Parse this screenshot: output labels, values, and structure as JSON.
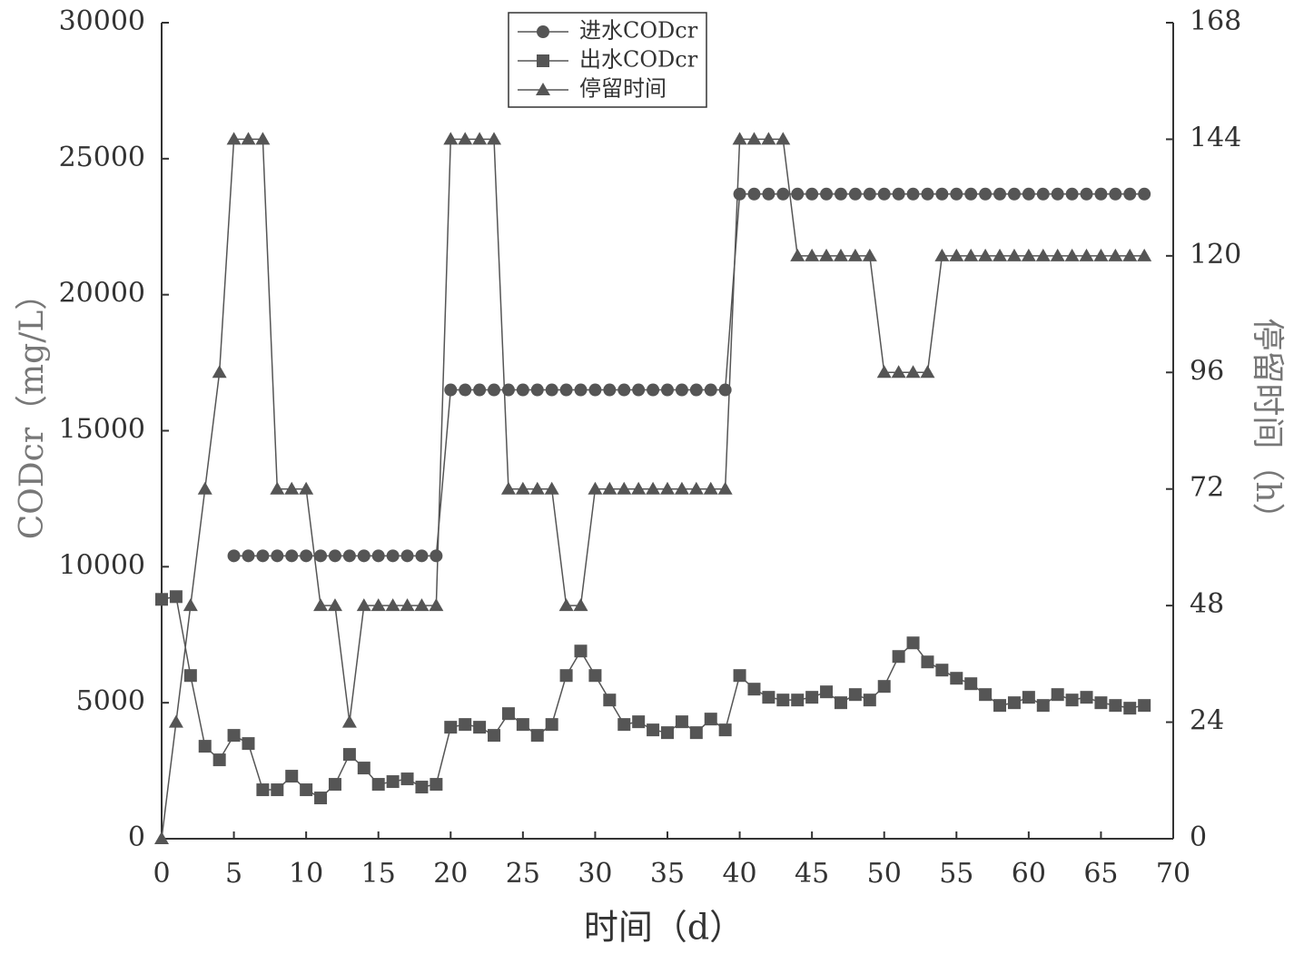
{
  "chart_data": {
    "type": "line",
    "x_label": "时间（d）",
    "y_label": "CODcr（mg/L）",
    "y2_label": "停留时间（h）",
    "xlim": [
      0,
      70
    ],
    "xticks": [
      0,
      5,
      10,
      15,
      20,
      25,
      30,
      35,
      40,
      45,
      50,
      55,
      60,
      65,
      70
    ],
    "ylim": [
      0,
      30000
    ],
    "yticks": [
      0,
      5000,
      10000,
      15000,
      20000,
      25000,
      30000
    ],
    "y2lim": [
      0,
      168
    ],
    "y2ticks": [
      0,
      24,
      48,
      72,
      96,
      120,
      144,
      168
    ],
    "legend": "top-center",
    "series": [
      {
        "name": "进水CODcr",
        "color": "#555555",
        "marker": "circle",
        "x": [
          5,
          6,
          7,
          8,
          9,
          10,
          11,
          12,
          13,
          14,
          15,
          16,
          17,
          18,
          19,
          20,
          21,
          22,
          23,
          24,
          25,
          26,
          27,
          28,
          29,
          30,
          31,
          32,
          33,
          34,
          35,
          36,
          37,
          38,
          39,
          40,
          41,
          42,
          43,
          44,
          45,
          46,
          47,
          48,
          49,
          50,
          51,
          52,
          53,
          54,
          55,
          56,
          57,
          58,
          59,
          60,
          61,
          62,
          63,
          64,
          65,
          66,
          67,
          68
        ],
        "values": [
          10400,
          10400,
          10400,
          10400,
          10400,
          10400,
          10400,
          10400,
          10400,
          10400,
          10400,
          10400,
          10400,
          10400,
          10400,
          16500,
          16500,
          16500,
          16500,
          16500,
          16500,
          16500,
          16500,
          16500,
          16500,
          16500,
          16500,
          16500,
          16500,
          16500,
          16500,
          16500,
          16500,
          16500,
          16500,
          23700,
          23700,
          23700,
          23700,
          23700,
          23700,
          23700,
          23700,
          23700,
          23700,
          23700,
          23700,
          23700,
          23700,
          23700,
          23700,
          23700,
          23700,
          23700,
          23700,
          23700,
          23700,
          23700,
          23700,
          23700,
          23700,
          23700,
          23700,
          23700
        ]
      },
      {
        "name": "出水CODcr",
        "color": "#555555",
        "marker": "square",
        "x": [
          0,
          1,
          2,
          3,
          4,
          5,
          6,
          7,
          8,
          9,
          10,
          11,
          12,
          13,
          14,
          15,
          16,
          17,
          18,
          19,
          20,
          21,
          22,
          23,
          24,
          25,
          26,
          27,
          28,
          29,
          30,
          31,
          32,
          33,
          34,
          35,
          36,
          37,
          38,
          39,
          40,
          41,
          42,
          43,
          44,
          45,
          46,
          47,
          48,
          49,
          50,
          51,
          52,
          53,
          54,
          55,
          56,
          57,
          58,
          59,
          60,
          61,
          62,
          63,
          64,
          65,
          66,
          67,
          68
        ],
        "values": [
          8800,
          8900,
          6000,
          3400,
          2900,
          3800,
          3500,
          1800,
          1800,
          2300,
          1800,
          1500,
          2000,
          3100,
          2600,
          2000,
          2100,
          2200,
          1900,
          2000,
          4100,
          4200,
          4100,
          3800,
          4600,
          4200,
          3800,
          4200,
          6000,
          6900,
          6000,
          5100,
          4200,
          4300,
          4000,
          3900,
          4300,
          3900,
          4400,
          4000,
          6000,
          5500,
          5200,
          5100,
          5100,
          5200,
          5400,
          5000,
          5300,
          5100,
          5600,
          6700,
          7200,
          6500,
          6200,
          5900,
          5700,
          5300,
          4900,
          5000,
          5200,
          4900,
          5300,
          5100,
          5200,
          5000,
          4900,
          4800,
          4900
        ]
      },
      {
        "name": "停留时间",
        "color": "#555555",
        "marker": "triangle",
        "axis": "y2",
        "x": [
          0,
          1,
          2,
          3,
          4,
          5,
          6,
          7,
          8,
          9,
          10,
          11,
          12,
          13,
          14,
          15,
          16,
          17,
          18,
          19,
          20,
          21,
          22,
          23,
          24,
          25,
          26,
          27,
          28,
          29,
          30,
          31,
          32,
          33,
          34,
          35,
          36,
          37,
          38,
          39,
          40,
          41,
          42,
          43,
          44,
          45,
          46,
          47,
          48,
          49,
          50,
          51,
          52,
          53,
          54,
          55,
          56,
          57,
          58,
          59,
          60,
          61,
          62,
          63,
          64,
          65,
          66,
          67,
          68
        ],
        "values": [
          0,
          24,
          48,
          72,
          96,
          144,
          144,
          144,
          72,
          72,
          72,
          48,
          48,
          24,
          48,
          48,
          48,
          48,
          48,
          48,
          144,
          144,
          144,
          144,
          72,
          72,
          72,
          72,
          48,
          48,
          72,
          72,
          72,
          72,
          72,
          72,
          72,
          72,
          72,
          72,
          144,
          144,
          144,
          144,
          120,
          120,
          120,
          120,
          120,
          120,
          96,
          96,
          96,
          96,
          120,
          120,
          120,
          120,
          120,
          120,
          120,
          120,
          120,
          120,
          120,
          120,
          120,
          120,
          120
        ]
      }
    ]
  }
}
